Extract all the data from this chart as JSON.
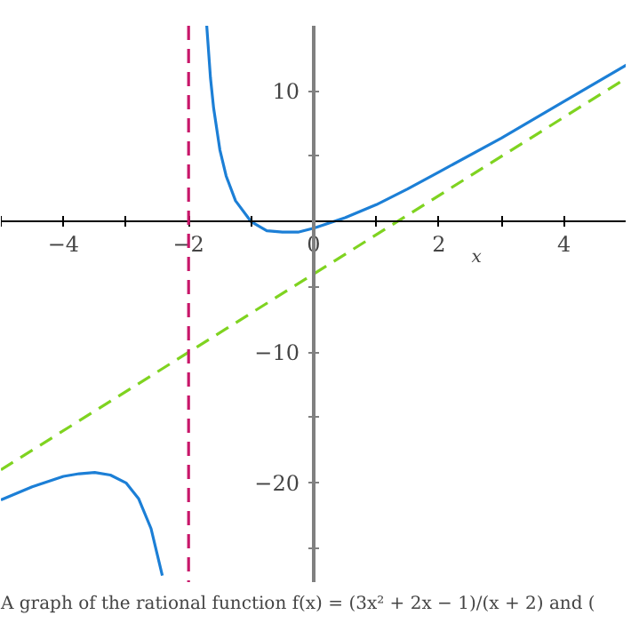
{
  "chart_data": {
    "type": "line",
    "xlabel": "x",
    "xlim": [
      -5,
      5
    ],
    "ylim": [
      -27.6,
      15
    ],
    "xticks": [
      {
        "value": -5,
        "label": null
      },
      -4,
      {
        "value": -3,
        "label": null
      },
      -2,
      {
        "value": -1,
        "label": null
      },
      0,
      {
        "value": 1,
        "label": null
      },
      2,
      {
        "value": 3,
        "label": null
      },
      4
    ],
    "yticks": [
      {
        "value": -25,
        "label": null
      },
      -20,
      {
        "value": -15,
        "label": null
      },
      -10,
      {
        "value": -5,
        "label": null
      },
      {
        "value": 5,
        "label": null
      },
      10
    ],
    "grid": false,
    "series": [
      {
        "color": "#1c7fd6",
        "line_style": "solid",
        "x": [
          -5,
          -4.5,
          -4,
          -3.75,
          -3.5,
          -3.25,
          -3,
          -2.8,
          -2.6,
          -2.5,
          -2.42
        ],
        "values": [
          -21.3,
          -20.3,
          -19.5,
          -19.3,
          -19.2,
          -19.4,
          -20,
          -21.2,
          -23.5,
          -25.5,
          -27.1
        ]
      },
      {
        "color": "#1c7fd6",
        "line_style": "solid",
        "x": [
          -1.71,
          -1.65,
          -1.6,
          -1.5,
          -1.4,
          -1.25,
          -1,
          -0.75,
          -0.5,
          -0.25,
          0,
          0.5,
          1,
          1.5,
          2,
          3,
          4,
          5
        ],
        "values": [
          15,
          11,
          8.7,
          5.5,
          3.5,
          1.6,
          0,
          -0.7,
          -0.8,
          -0.8,
          -0.5,
          0.3,
          1.3,
          2.5,
          3.8,
          6.4,
          9.2,
          12
        ]
      },
      {
        "color": "#7fd320",
        "line_style": "dashed",
        "x": [
          -5,
          5
        ],
        "values": [
          -19,
          11
        ]
      }
    ],
    "ref_lines": [
      {
        "axis": "x",
        "value": -2,
        "color": "#c8176a",
        "line_style": "dashed"
      }
    ],
    "annotations": [
      "A graph of the rational function f(x) = (3x² + 2x − 1)/(x + 2)  and ("
    ]
  }
}
